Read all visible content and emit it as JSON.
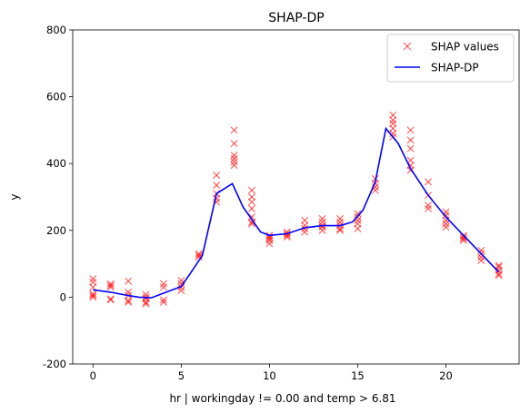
{
  "chart_data": {
    "type": "scatter+line",
    "title": "SHAP-DP",
    "xlabel": "hr | workingday != 0.00 and temp > 6.81",
    "ylabel": "y",
    "xlim": [
      -1.15,
      24.15
    ],
    "ylim": [
      -200,
      800
    ],
    "xticks": [
      0,
      5,
      10,
      15,
      20
    ],
    "yticks": [
      -200,
      0,
      200,
      400,
      600,
      800
    ],
    "grid": false,
    "legend_position": "top-right",
    "series": [
      {
        "name": "SHAP values",
        "kind": "scatter",
        "marker": "x",
        "color": "#ff0000",
        "alpha": 0.6,
        "points": [
          [
            0,
            55
          ],
          [
            0,
            45
          ],
          [
            0,
            30
          ],
          [
            0,
            10
          ],
          [
            0,
            5
          ],
          [
            0,
            0
          ],
          [
            1,
            40
          ],
          [
            1,
            35
          ],
          [
            1,
            30
          ],
          [
            1,
            -5
          ],
          [
            1,
            -8
          ],
          [
            2,
            48
          ],
          [
            2,
            15
          ],
          [
            2,
            5
          ],
          [
            2,
            -10
          ],
          [
            2,
            -15
          ],
          [
            3,
            8
          ],
          [
            3,
            0
          ],
          [
            3,
            -5
          ],
          [
            3,
            -15
          ],
          [
            3,
            -20
          ],
          [
            4,
            40
          ],
          [
            4,
            30
          ],
          [
            4,
            -8
          ],
          [
            4,
            -15
          ],
          [
            5,
            50
          ],
          [
            5,
            40
          ],
          [
            5,
            30
          ],
          [
            5,
            20
          ],
          [
            6,
            130
          ],
          [
            6,
            125
          ],
          [
            6,
            120
          ],
          [
            7,
            365
          ],
          [
            7,
            335
          ],
          [
            7,
            310
          ],
          [
            7,
            295
          ],
          [
            7,
            285
          ],
          [
            8,
            500
          ],
          [
            8,
            460
          ],
          [
            8,
            425
          ],
          [
            8,
            415
          ],
          [
            8,
            405
          ],
          [
            8,
            395
          ],
          [
            9,
            320
          ],
          [
            9,
            300
          ],
          [
            9,
            285
          ],
          [
            9,
            265
          ],
          [
            9,
            240
          ],
          [
            9,
            225
          ],
          [
            9,
            220
          ],
          [
            10,
            185
          ],
          [
            10,
            180
          ],
          [
            10,
            175
          ],
          [
            10,
            170
          ],
          [
            10,
            160
          ],
          [
            11,
            195
          ],
          [
            11,
            190
          ],
          [
            11,
            185
          ],
          [
            11,
            180
          ],
          [
            12,
            230
          ],
          [
            12,
            215
          ],
          [
            12,
            205
          ],
          [
            12,
            195
          ],
          [
            13,
            235
          ],
          [
            13,
            225
          ],
          [
            13,
            215
          ],
          [
            13,
            210
          ],
          [
            13,
            200
          ],
          [
            14,
            235
          ],
          [
            14,
            225
          ],
          [
            14,
            215
          ],
          [
            14,
            205
          ],
          [
            14,
            200
          ],
          [
            15,
            250
          ],
          [
            15,
            240
          ],
          [
            15,
            230
          ],
          [
            15,
            220
          ],
          [
            15,
            205
          ],
          [
            16,
            355
          ],
          [
            16,
            340
          ],
          [
            16,
            330
          ],
          [
            16,
            320
          ],
          [
            17,
            545
          ],
          [
            17,
            530
          ],
          [
            17,
            520
          ],
          [
            17,
            505
          ],
          [
            17,
            490
          ],
          [
            17,
            480
          ],
          [
            18,
            500
          ],
          [
            18,
            470
          ],
          [
            18,
            445
          ],
          [
            18,
            410
          ],
          [
            18,
            395
          ],
          [
            18,
            380
          ],
          [
            19,
            345
          ],
          [
            19,
            305
          ],
          [
            19,
            275
          ],
          [
            19,
            265
          ],
          [
            20,
            255
          ],
          [
            20,
            245
          ],
          [
            20,
            230
          ],
          [
            20,
            220
          ],
          [
            20,
            210
          ],
          [
            21,
            185
          ],
          [
            21,
            180
          ],
          [
            21,
            175
          ],
          [
            21,
            170
          ],
          [
            22,
            140
          ],
          [
            22,
            130
          ],
          [
            22,
            120
          ],
          [
            22,
            110
          ],
          [
            23,
            95
          ],
          [
            23,
            90
          ],
          [
            23,
            80
          ],
          [
            23,
            70
          ],
          [
            23,
            65
          ]
        ]
      },
      {
        "name": "SHAP-DP",
        "kind": "line",
        "color": "#0000ff",
        "points": [
          [
            0,
            22
          ],
          [
            1,
            15
          ],
          [
            2,
            5
          ],
          [
            2.6,
            0
          ],
          [
            3.3,
            -2
          ],
          [
            4,
            12
          ],
          [
            5,
            32
          ],
          [
            5.5,
            70
          ],
          [
            6.2,
            125
          ],
          [
            7,
            310
          ],
          [
            7.9,
            340
          ],
          [
            8.5,
            270
          ],
          [
            9.5,
            195
          ],
          [
            10,
            185
          ],
          [
            11,
            190
          ],
          [
            12,
            208
          ],
          [
            13,
            214
          ],
          [
            14,
            214
          ],
          [
            14.7,
            225
          ],
          [
            15.3,
            260
          ],
          [
            16,
            345
          ],
          [
            16.6,
            505
          ],
          [
            17.3,
            460
          ],
          [
            18,
            385
          ],
          [
            19,
            305
          ],
          [
            20,
            240
          ],
          [
            21,
            185
          ],
          [
            22,
            130
          ],
          [
            23,
            75
          ]
        ]
      }
    ]
  }
}
